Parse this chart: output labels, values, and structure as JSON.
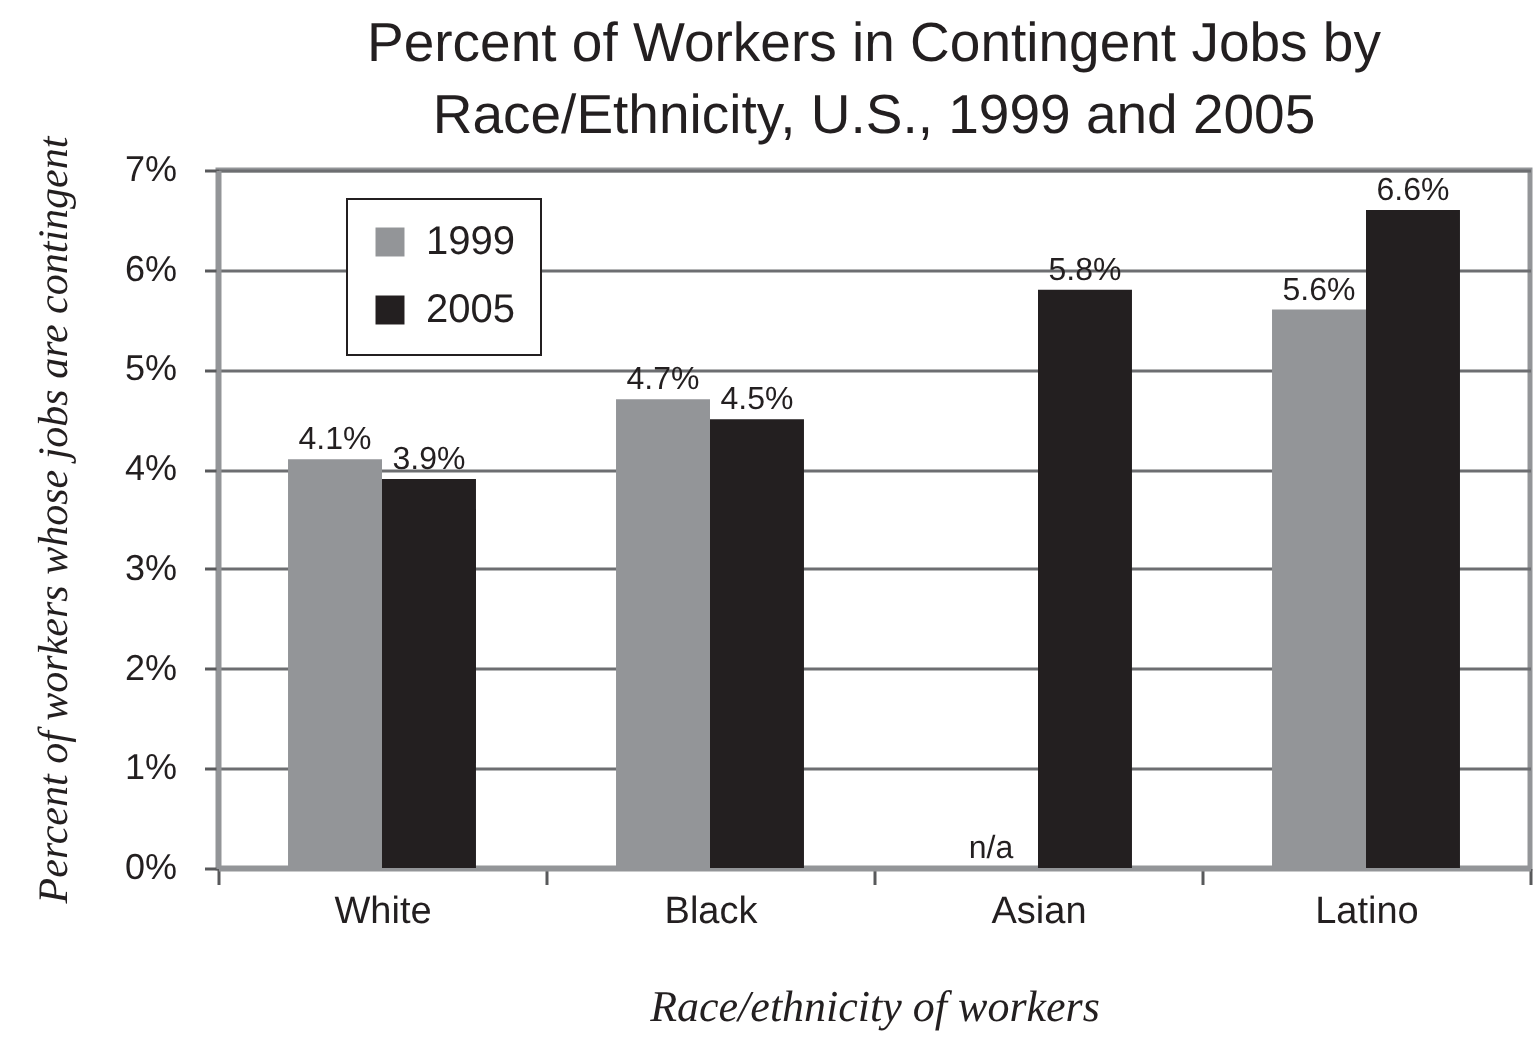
{
  "chart_data": {
    "type": "bar",
    "title": "Percent of Workers in Contingent Jobs by Race/Ethnicity, U.S., 1999 and 2005",
    "xlabel": "Race/ethnicity of workers",
    "ylabel": "Percent of workers whose jobs are contingent",
    "categories": [
      "White",
      "Black",
      "Asian",
      "Latino"
    ],
    "series": [
      {
        "name": "1999",
        "color": "#939598",
        "values": [
          4.1,
          4.7,
          null,
          5.6
        ],
        "value_labels": [
          "4.1%",
          "4.7%",
          "n/a",
          "5.6%"
        ]
      },
      {
        "name": "2005",
        "color": "#231f20",
        "values": [
          3.9,
          4.5,
          5.8,
          6.6
        ],
        "value_labels": [
          "3.9%",
          "4.5%",
          "5.8%",
          "6.6%"
        ]
      }
    ],
    "ylim": [
      0,
      7
    ],
    "yticks": [
      {
        "value": 0,
        "label": "0%"
      },
      {
        "value": 1,
        "label": "1%"
      },
      {
        "value": 2,
        "label": "2%"
      },
      {
        "value": 3,
        "label": "3%"
      },
      {
        "value": 4,
        "label": "4%"
      },
      {
        "value": 5,
        "label": "5%"
      },
      {
        "value": 6,
        "label": "6%"
      },
      {
        "value": 7,
        "label": "7%"
      }
    ],
    "grid": "y",
    "legend": "top left"
  }
}
